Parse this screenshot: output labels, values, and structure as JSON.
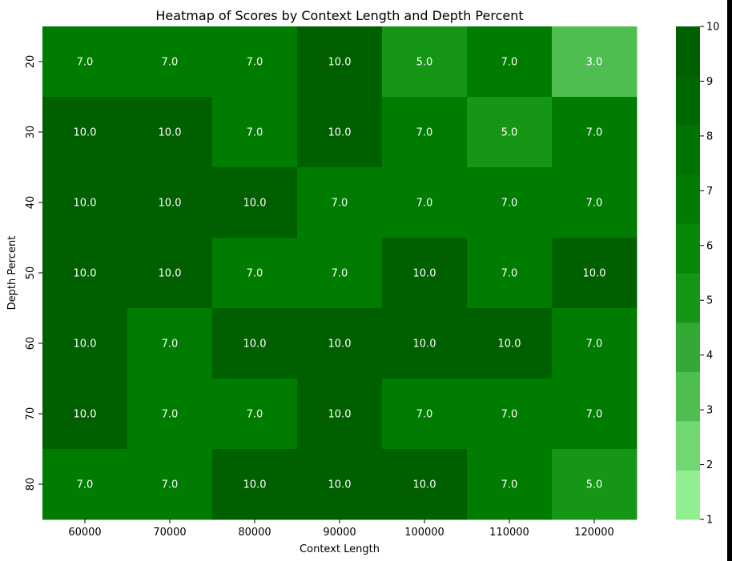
{
  "chart_data": {
    "type": "heatmap",
    "title": "Heatmap of Scores by Context Length and Depth Percent",
    "xlabel": "Context Length",
    "ylabel": "Depth Percent",
    "x": [
      "60000",
      "70000",
      "80000",
      "90000",
      "100000",
      "110000",
      "120000"
    ],
    "y": [
      "20",
      "30",
      "40",
      "50",
      "60",
      "70",
      "80"
    ],
    "values": [
      [
        7.0,
        7.0,
        7.0,
        10.0,
        5.0,
        7.0,
        3.0
      ],
      [
        10.0,
        10.0,
        7.0,
        10.0,
        7.0,
        5.0,
        7.0
      ],
      [
        10.0,
        10.0,
        10.0,
        7.0,
        7.0,
        7.0,
        7.0
      ],
      [
        10.0,
        10.0,
        7.0,
        7.0,
        10.0,
        7.0,
        10.0
      ],
      [
        10.0,
        7.0,
        10.0,
        10.0,
        10.0,
        10.0,
        7.0
      ],
      [
        10.0,
        7.0,
        7.0,
        10.0,
        7.0,
        7.0,
        7.0
      ],
      [
        7.0,
        7.0,
        10.0,
        10.0,
        10.0,
        7.0,
        5.0
      ]
    ],
    "value_format": "0.0",
    "colorbar": {
      "range": [
        1,
        10
      ],
      "ticks": [
        "1",
        "2",
        "3",
        "4",
        "5",
        "6",
        "7",
        "8",
        "9",
        "10"
      ],
      "colors": [
        "#90ee90",
        "#72d972",
        "#50bd50",
        "#34a834",
        "#159715",
        "#078807",
        "#007d00",
        "#007300",
        "#006800",
        "#006000"
      ]
    },
    "annotation_color": "#ffffff",
    "grid": false,
    "legend": "none"
  }
}
